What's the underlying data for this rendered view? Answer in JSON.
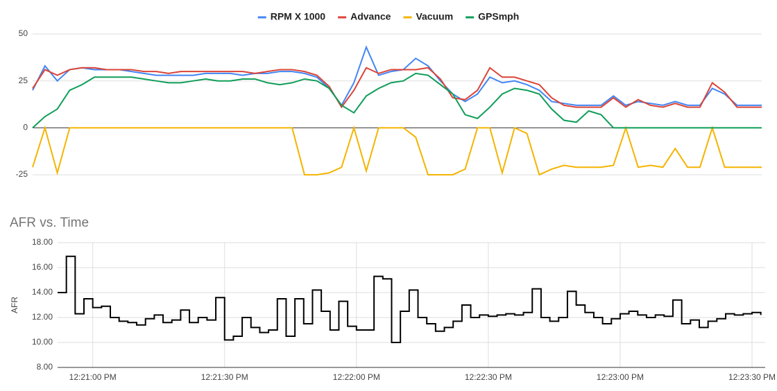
{
  "chart_data": [
    {
      "type": "line",
      "categories": [
        null,
        null,
        null,
        null,
        null,
        null,
        null,
        null,
        null,
        null,
        null,
        null,
        null,
        null,
        null,
        null,
        null,
        null,
        null,
        null,
        null,
        null,
        null,
        null,
        null,
        null,
        null,
        null,
        null,
        null,
        null,
        null,
        null,
        null,
        null,
        null,
        null,
        null,
        null,
        null,
        null,
        null,
        null,
        null,
        null,
        null,
        null,
        null,
        null,
        null,
        null,
        null,
        null,
        null,
        null,
        null,
        null,
        null,
        null,
        null
      ],
      "series": [
        {
          "name": "RPM X 1000",
          "color": "#4285f4",
          "values": [
            20,
            33,
            25,
            31,
            32,
            31,
            31,
            31,
            30,
            29,
            28,
            28,
            28,
            28,
            29,
            29,
            29,
            28,
            29,
            29,
            30,
            30,
            29,
            27,
            21,
            12,
            24,
            43,
            28,
            30,
            31,
            37,
            33,
            25,
            18,
            14,
            18,
            27,
            24,
            25,
            23,
            20,
            14,
            13,
            12,
            12,
            12,
            17,
            12,
            14,
            13,
            12,
            14,
            12,
            12,
            21,
            18,
            12,
            12,
            12
          ]
        },
        {
          "name": "Advance",
          "color": "#db4437",
          "values": [
            21,
            31,
            28,
            31,
            32,
            32,
            31,
            31,
            31,
            30,
            30,
            29,
            30,
            30,
            30,
            30,
            30,
            30,
            29,
            30,
            31,
            31,
            30,
            28,
            22,
            11,
            20,
            32,
            29,
            31,
            31,
            31,
            32,
            26,
            16,
            15,
            20,
            32,
            27,
            27,
            25,
            23,
            16,
            12,
            11,
            11,
            11,
            16,
            11,
            15,
            12,
            11,
            13,
            11,
            11,
            24,
            19,
            11,
            11,
            11
          ]
        },
        {
          "name": "Vacuum",
          "color": "#f4b400",
          "values": [
            -21,
            0,
            -24,
            0,
            0,
            0,
            0,
            0,
            0,
            0,
            0,
            0,
            0,
            0,
            0,
            0,
            0,
            0,
            0,
            0,
            0,
            0,
            -25,
            -25,
            -24,
            -21,
            0,
            -23,
            0,
            0,
            0,
            -5,
            -25,
            -25,
            -25,
            -22,
            0,
            0,
            -24,
            0,
            -3,
            -25,
            -22,
            -20,
            -21,
            -21,
            -21,
            -20,
            0,
            -21,
            -20,
            -21,
            -11,
            -21,
            -21,
            0,
            -21,
            -21,
            -21,
            -21
          ]
        },
        {
          "name": "GPSmph",
          "color": "#0f9d58",
          "values": [
            0,
            6,
            10,
            20,
            23,
            27,
            27,
            27,
            27,
            26,
            25,
            24,
            24,
            25,
            26,
            25,
            25,
            26,
            26,
            24,
            23,
            24,
            26,
            25,
            21,
            12,
            8,
            17,
            21,
            24,
            25,
            29,
            28,
            23,
            18,
            7,
            5,
            11,
            18,
            21,
            20,
            18,
            10,
            4,
            3,
            9,
            7,
            0,
            0,
            0,
            0,
            0,
            0,
            0,
            0,
            0,
            0,
            0,
            0,
            0
          ]
        }
      ],
      "ylim": [
        -30,
        50
      ],
      "yticks": [
        50,
        25,
        0,
        -25
      ],
      "grid": true,
      "legend": "top"
    },
    {
      "type": "line",
      "curve": "step",
      "title": "AFR vs. Time",
      "y_label": "AFR",
      "color": "#000000",
      "x": [
        44452,
        44454,
        44456,
        44458,
        44460,
        44462,
        44464,
        44466,
        44468,
        44470,
        44472,
        44474,
        44476,
        44478,
        44480,
        44482,
        44484,
        44486,
        44488,
        44490,
        44492,
        44494,
        44496,
        44498,
        44500,
        44502,
        44504,
        44506,
        44508,
        44510,
        44512,
        44514,
        44516,
        44518,
        44520,
        44522,
        44524,
        44526,
        44528,
        44530,
        44532,
        44534,
        44536,
        44538,
        44540,
        44542,
        44544,
        44546,
        44548,
        44550,
        44552,
        44554,
        44556,
        44558,
        44560,
        44562,
        44564,
        44566,
        44568,
        44570,
        44572,
        44574,
        44576,
        44578,
        44580,
        44582,
        44584,
        44586,
        44588,
        44590,
        44592,
        44594,
        44596,
        44598,
        44600,
        44602,
        44604,
        44606,
        44608,
        44610,
        44612
      ],
      "values": [
        14.0,
        16.9,
        12.3,
        13.5,
        12.8,
        12.9,
        12.0,
        11.7,
        11.6,
        11.4,
        11.9,
        12.2,
        11.6,
        11.8,
        12.6,
        11.6,
        12.0,
        11.8,
        13.6,
        10.2,
        10.5,
        12.0,
        11.2,
        10.8,
        11.0,
        13.5,
        10.5,
        13.5,
        11.5,
        14.2,
        12.5,
        11.0,
        13.3,
        11.3,
        11.0,
        11.0,
        15.3,
        15.1,
        10.0,
        12.5,
        14.2,
        12.0,
        11.5,
        10.9,
        11.2,
        11.7,
        13.0,
        12.0,
        12.2,
        12.1,
        12.2,
        12.3,
        12.2,
        12.4,
        14.3,
        12.0,
        11.7,
        12.0,
        14.1,
        13.0,
        12.4,
        12.0,
        11.5,
        11.9,
        12.3,
        12.5,
        12.2,
        12.0,
        12.2,
        12.1,
        13.4,
        11.5,
        11.8,
        11.2,
        11.7,
        11.9,
        12.3,
        12.2,
        12.3,
        12.4,
        12.2
      ],
      "xlim": [
        44452,
        44613
      ],
      "xticks": [
        {
          "value": 44460,
          "label": "12:21:00 PM"
        },
        {
          "value": 44490,
          "label": "12:21:30 PM"
        },
        {
          "value": 44520,
          "label": "12:22:00 PM"
        },
        {
          "value": 44550,
          "label": "12:22:30 PM"
        },
        {
          "value": 44580,
          "label": "12:23:00 PM"
        },
        {
          "value": 44610,
          "label": "12:23:30 PM"
        }
      ],
      "ylim": [
        8,
        18
      ],
      "yticks": [
        {
          "value": 8,
          "label": "8.00"
        },
        {
          "value": 10,
          "label": "10.00"
        },
        {
          "value": 12,
          "label": "12.00"
        },
        {
          "value": 14,
          "label": "14.00"
        },
        {
          "value": 16,
          "label": "16.00"
        },
        {
          "value": 18,
          "label": "18.00"
        }
      ],
      "grid": true
    }
  ]
}
